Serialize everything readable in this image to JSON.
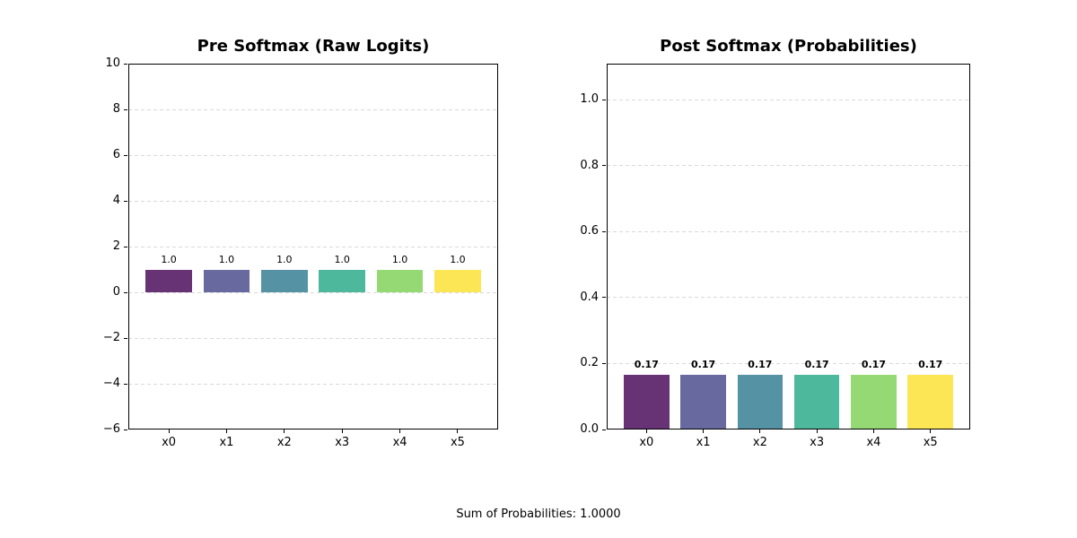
{
  "figure": {
    "background": "#ffffff",
    "footer": "Sum of Probabilities: 1.0000"
  },
  "chart_data": [
    {
      "type": "bar",
      "title": "Pre Softmax (Raw Logits)",
      "categories": [
        "x0",
        "x1",
        "x2",
        "x3",
        "x4",
        "x5"
      ],
      "values": [
        1.0,
        1.0,
        1.0,
        1.0,
        1.0,
        1.0
      ],
      "bar_labels": [
        "1.0",
        "1.0",
        "1.0",
        "1.0",
        "1.0",
        "1.0"
      ],
      "bar_labels_bold": false,
      "xlabel": "",
      "ylabel": "",
      "ylim": [
        -6,
        10
      ],
      "yticks": [
        {
          "v": -6,
          "label": "−6"
        },
        {
          "v": -4,
          "label": "−4"
        },
        {
          "v": -2,
          "label": "−2"
        },
        {
          "v": 0,
          "label": "0"
        },
        {
          "v": 2,
          "label": "2"
        },
        {
          "v": 4,
          "label": "4"
        },
        {
          "v": 6,
          "label": "6"
        },
        {
          "v": 8,
          "label": "8"
        },
        {
          "v": 10,
          "label": "10"
        }
      ],
      "grid": "horizontal-dashed",
      "legend": "none",
      "colors": [
        "#673375",
        "#67699f",
        "#5592a3",
        "#4eb89c",
        "#94d973",
        "#fde655"
      ]
    },
    {
      "type": "bar",
      "title": "Post Softmax (Probabilities)",
      "categories": [
        "x0",
        "x1",
        "x2",
        "x3",
        "x4",
        "x5"
      ],
      "values": [
        0.1667,
        0.1667,
        0.1667,
        0.1667,
        0.1667,
        0.1667
      ],
      "bar_labels": [
        "0.17",
        "0.17",
        "0.17",
        "0.17",
        "0.17",
        "0.17"
      ],
      "bar_labels_bold": true,
      "xlabel": "",
      "ylabel": "",
      "ylim": [
        0,
        1.11
      ],
      "yticks": [
        {
          "v": 0.0,
          "label": "0.0"
        },
        {
          "v": 0.2,
          "label": "0.2"
        },
        {
          "v": 0.4,
          "label": "0.4"
        },
        {
          "v": 0.6,
          "label": "0.6"
        },
        {
          "v": 0.8,
          "label": "0.8"
        },
        {
          "v": 1.0,
          "label": "1.0"
        }
      ],
      "grid": "horizontal-dashed",
      "legend": "none",
      "colors": [
        "#673375",
        "#67699f",
        "#5592a3",
        "#4eb89c",
        "#94d973",
        "#fde655"
      ]
    }
  ],
  "style": {
    "grid_color": "#d9d9d9",
    "axis_color": "#000000",
    "text_color": "#000000"
  }
}
